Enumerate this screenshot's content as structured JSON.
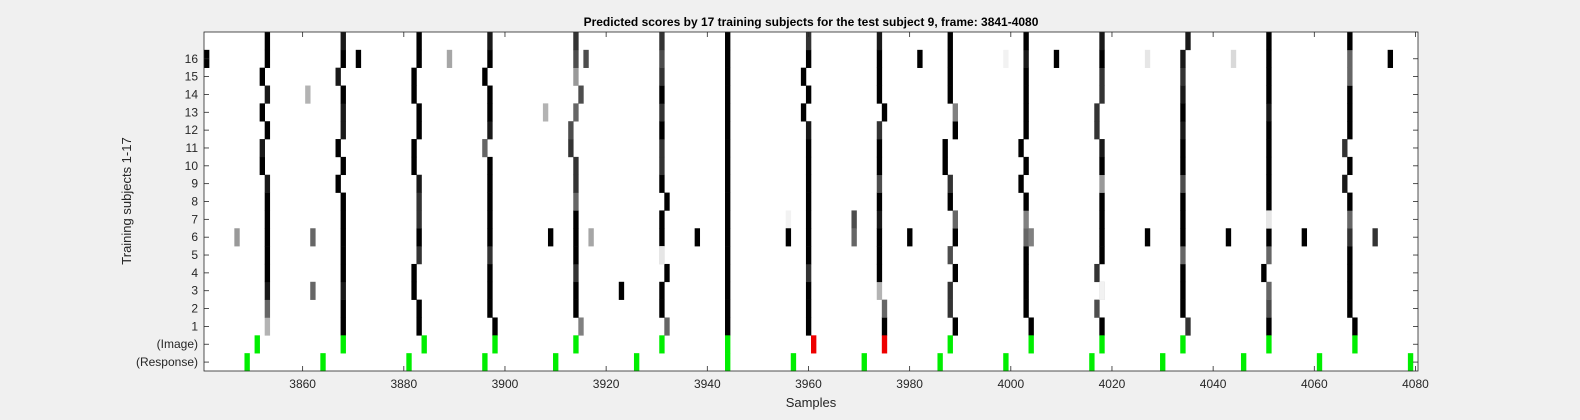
{
  "chart_data": {
    "type": "heatmap",
    "title": "Predicted scores by 17 training subjects for the test subject 9, frame: 3841-4080",
    "xlabel": "Samples",
    "ylabel": "Training subjects 1-17",
    "xlim": [
      3841,
      4080
    ],
    "xticks": [
      3860,
      3880,
      3900,
      3920,
      3940,
      3960,
      3980,
      4000,
      4020,
      4040,
      4060,
      4080
    ],
    "yticklabels": [
      "(Response)",
      "(Image)",
      "1",
      "2",
      "3",
      "4",
      "5",
      "6",
      "7",
      "8",
      "9",
      "10",
      "11",
      "12",
      "13",
      "14",
      "15",
      "16"
    ],
    "rows": [
      "1",
      "2",
      "3",
      "4",
      "5",
      "6",
      "7",
      "8",
      "9",
      "10",
      "11",
      "12",
      "13",
      "14",
      "15",
      "16",
      "17"
    ],
    "grid": false,
    "colors": {
      "axes_bg": "#ffffff",
      "figure_bg": "#f0f0f0",
      "score_high": "#000000",
      "score_low": "#ffffff",
      "image_marker": "#00ee00",
      "image_error": "#ee0000",
      "response_marker": "#00ee00"
    },
    "response_events": [
      3849,
      3864,
      3881,
      3896,
      3910,
      3926,
      3944,
      3957,
      3971,
      3986,
      3999,
      4016,
      4030,
      4046,
      4061,
      4079
    ],
    "image_events": [
      {
        "x": 3851,
        "correct": true
      },
      {
        "x": 3868,
        "correct": true
      },
      {
        "x": 3884,
        "correct": true
      },
      {
        "x": 3898,
        "correct": true
      },
      {
        "x": 3914,
        "correct": true
      },
      {
        "x": 3931,
        "correct": true
      },
      {
        "x": 3944,
        "correct": true
      },
      {
        "x": 3961,
        "correct": false
      },
      {
        "x": 3975,
        "correct": false
      },
      {
        "x": 3988,
        "correct": true
      },
      {
        "x": 4004,
        "correct": true
      },
      {
        "x": 4018,
        "correct": true
      },
      {
        "x": 4034,
        "correct": true
      },
      {
        "x": 4051,
        "correct": true
      },
      {
        "x": 4068,
        "correct": true
      }
    ],
    "main_bands": [
      {
        "x": 3852,
        "jitter": [
          1,
          1,
          1,
          1,
          1,
          1,
          1,
          1,
          1,
          0,
          0,
          1,
          0,
          1,
          0,
          1,
          1
        ],
        "intensity": [
          0.3,
          0.6,
          0.9,
          1,
          1,
          1,
          1,
          1,
          0.9,
          1,
          0.9,
          1,
          1,
          0.9,
          1,
          1,
          1
        ]
      },
      {
        "x": 3868,
        "jitter": [
          0,
          0,
          0,
          0,
          0,
          0,
          0,
          0,
          -1,
          0,
          -1,
          0,
          0,
          0,
          -1,
          0,
          0
        ],
        "intensity": [
          1,
          1,
          0.9,
          1,
          1,
          1,
          1,
          1,
          1,
          1,
          1,
          0.9,
          0.9,
          1,
          0.9,
          1,
          0.9
        ]
      },
      {
        "x": 3883,
        "jitter": [
          0,
          0,
          -1,
          -1,
          0,
          0,
          0,
          0,
          0,
          -1,
          -1,
          0,
          0,
          -1,
          -1,
          0,
          0
        ],
        "intensity": [
          1,
          1,
          1,
          1,
          0.8,
          1,
          0.8,
          0.8,
          0.9,
          1,
          1,
          1,
          1,
          1,
          1,
          1,
          1
        ]
      },
      {
        "x": 3897,
        "jitter": [
          1,
          0,
          0,
          0,
          0,
          0,
          0,
          0,
          0,
          0,
          -1,
          0,
          0,
          0,
          -1,
          0,
          0
        ],
        "intensity": [
          1,
          1,
          1,
          1,
          0.8,
          1,
          1,
          1,
          1,
          1,
          0.6,
          0.9,
          1,
          1,
          1,
          1,
          0.9
        ]
      },
      {
        "x": 3914,
        "jitter": [
          1,
          0,
          0,
          0,
          0,
          0,
          0,
          0,
          0,
          0,
          -1,
          -1,
          0,
          1,
          0,
          0,
          0
        ],
        "intensity": [
          0.5,
          1,
          1,
          0.8,
          1,
          1,
          1,
          0.6,
          0.8,
          0.8,
          0.8,
          0.7,
          0.6,
          0.7,
          0.4,
          0.7,
          0.8
        ]
      },
      {
        "x": 3931,
        "jitter": [
          1,
          0,
          0,
          1,
          0,
          0,
          0,
          1,
          0,
          0,
          0,
          0,
          0,
          0,
          0,
          0,
          0
        ],
        "intensity": [
          0.6,
          1,
          1,
          1,
          0.2,
          1,
          1,
          1,
          1,
          0.8,
          0.8,
          1,
          0.8,
          1,
          0.8,
          0.7,
          0.8
        ]
      },
      {
        "x": 3944,
        "jitter": [
          0,
          0,
          0,
          0,
          0,
          0,
          0,
          0,
          0,
          0,
          0,
          0,
          0,
          0,
          0,
          0,
          0
        ],
        "intensity": [
          1,
          1,
          1,
          1,
          1,
          1,
          1,
          1,
          1,
          1,
          1,
          1,
          1,
          1,
          1,
          1,
          1
        ]
      },
      {
        "x": 3960,
        "jitter": [
          0,
          0,
          0,
          0,
          0,
          0,
          0,
          0,
          0,
          0,
          0,
          0,
          -1,
          0,
          -1,
          0,
          0
        ],
        "intensity": [
          1,
          1,
          1,
          0.8,
          1,
          1,
          1,
          1,
          1,
          1,
          1,
          0.9,
          1,
          1,
          1,
          1,
          0.8
        ]
      },
      {
        "x": 3974,
        "jitter": [
          1,
          1,
          0,
          0,
          0,
          0,
          0,
          0,
          0,
          0,
          0,
          0,
          1,
          0,
          0,
          0,
          0
        ],
        "intensity": [
          1,
          0.6,
          0.3,
          1,
          1,
          1,
          0.9,
          1,
          0.7,
          1,
          1,
          0.8,
          1,
          1,
          1,
          1,
          0.9
        ]
      },
      {
        "x": 3988,
        "jitter": [
          1,
          0,
          0,
          1,
          0,
          1,
          1,
          0,
          0,
          -1,
          -1,
          1,
          1,
          0,
          0,
          0,
          0
        ],
        "intensity": [
          1,
          0.8,
          0.8,
          1,
          0.7,
          1,
          0.6,
          1,
          0.8,
          1,
          1,
          1,
          0.5,
          1,
          1,
          1,
          1
        ]
      },
      {
        "x": 4003,
        "jitter": [
          1,
          0,
          0,
          0,
          0,
          0,
          0,
          0,
          -1,
          0,
          -1,
          0,
          0,
          0,
          0,
          0,
          0
        ],
        "intensity": [
          1,
          1,
          1,
          1,
          1,
          0.6,
          0.5,
          1,
          1,
          1,
          1,
          1,
          1,
          1,
          1,
          0.9,
          1
        ]
      },
      {
        "x": 4018,
        "jitter": [
          0,
          -1,
          0,
          -1,
          0,
          0,
          0,
          0,
          0,
          0,
          0,
          -1,
          -1,
          0,
          0,
          0,
          0
        ],
        "intensity": [
          1,
          0.7,
          0.3,
          0.8,
          1,
          1,
          1,
          1,
          0.4,
          1,
          0.9,
          0.8,
          0.8,
          0.8,
          0.8,
          1,
          0.9
        ]
      },
      {
        "x": 4034,
        "jitter": [
          1,
          0,
          0,
          0,
          0,
          0,
          0,
          0,
          0,
          0,
          0,
          0,
          0,
          0,
          0,
          0,
          1
        ],
        "intensity": [
          0.8,
          1,
          1,
          1,
          0.6,
          1,
          1,
          1,
          0.7,
          1,
          1,
          0.9,
          1,
          0.9,
          0.8,
          0.9,
          0.9
        ]
      },
      {
        "x": 4051,
        "jitter": [
          0,
          0,
          0,
          -1,
          0,
          0,
          0,
          0,
          0,
          0,
          0,
          0,
          0,
          0,
          0,
          0,
          0
        ],
        "intensity": [
          1,
          0.7,
          0.6,
          1,
          0.6,
          1,
          0.2,
          1,
          1,
          1,
          1,
          1,
          0.9,
          1,
          1,
          1,
          1
        ]
      },
      {
        "x": 4067,
        "jitter": [
          1,
          0,
          0,
          0,
          0,
          0,
          0,
          0,
          -1,
          0,
          -1,
          0,
          0,
          0,
          0,
          0,
          0
        ],
        "intensity": [
          1,
          1,
          1,
          1,
          1,
          0.8,
          0.6,
          1,
          0.9,
          1,
          0.8,
          1,
          1,
          1,
          0.6,
          0.6,
          1
        ]
      }
    ],
    "scattered_cells": [
      {
        "row": 16,
        "x": 3841,
        "intensity": 1
      },
      {
        "row": 16,
        "x": 3871,
        "intensity": 1
      },
      {
        "row": 16,
        "x": 3889,
        "intensity": 0.35
      },
      {
        "row": 16,
        "x": 3916,
        "intensity": 0.7
      },
      {
        "row": 16,
        "x": 3982,
        "intensity": 1
      },
      {
        "row": 16,
        "x": 3999,
        "intensity": 0.05
      },
      {
        "row": 16,
        "x": 4009,
        "intensity": 1
      },
      {
        "row": 16,
        "x": 4027,
        "intensity": 0.1
      },
      {
        "row": 16,
        "x": 4044,
        "intensity": 0.15
      },
      {
        "row": 16,
        "x": 4075,
        "intensity": 1
      },
      {
        "row": 14,
        "x": 3861,
        "intensity": 0.3
      },
      {
        "row": 13,
        "x": 3908,
        "intensity": 0.3
      },
      {
        "row": 7,
        "x": 3956,
        "intensity": 0.05
      },
      {
        "row": 7,
        "x": 3969,
        "intensity": 0.7
      },
      {
        "row": 7,
        "x": 4051,
        "intensity": 0.1
      },
      {
        "row": 6,
        "x": 3847,
        "intensity": 0.4
      },
      {
        "row": 6,
        "x": 3862,
        "intensity": 0.6
      },
      {
        "row": 6,
        "x": 3909,
        "intensity": 1
      },
      {
        "row": 6,
        "x": 3917,
        "intensity": 0.35
      },
      {
        "row": 6,
        "x": 3938,
        "intensity": 1
      },
      {
        "row": 6,
        "x": 3956,
        "intensity": 1
      },
      {
        "row": 6,
        "x": 3969,
        "intensity": 0.6
      },
      {
        "row": 6,
        "x": 3980,
        "intensity": 1
      },
      {
        "row": 6,
        "x": 4004,
        "intensity": 0.5
      },
      {
        "row": 6,
        "x": 4027,
        "intensity": 1
      },
      {
        "row": 6,
        "x": 4043,
        "intensity": 1
      },
      {
        "row": 6,
        "x": 4058,
        "intensity": 1
      },
      {
        "row": 6,
        "x": 4072,
        "intensity": 0.8
      },
      {
        "row": 5,
        "x": 3931,
        "intensity": 0.1
      },
      {
        "row": 3,
        "x": 3862,
        "intensity": 0.6
      },
      {
        "row": 3,
        "x": 3923,
        "intensity": 1
      },
      {
        "row": 3,
        "x": 4018,
        "intensity": 0.05
      }
    ]
  }
}
